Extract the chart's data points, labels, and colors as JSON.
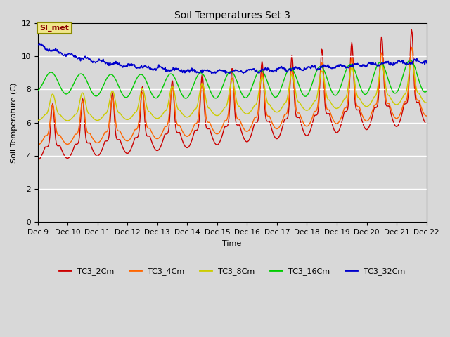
{
  "title": "Soil Temperatures Set 3",
  "xlabel": "Time",
  "ylabel": "Soil Temperature (C)",
  "ylim": [
    0,
    12
  ],
  "background_color": "#d8d8d8",
  "plot_bg_color": "#d8d8d8",
  "annotation_text": "SI_met",
  "annotation_bg": "#f0e68c",
  "annotation_border": "#8b8b00",
  "annotation_text_color": "#8b0000",
  "series": {
    "TC3_2Cm": {
      "color": "#cc0000",
      "lw": 1.0
    },
    "TC3_4Cm": {
      "color": "#ff6600",
      "lw": 1.0
    },
    "TC3_8Cm": {
      "color": "#cccc00",
      "lw": 1.0
    },
    "TC3_16Cm": {
      "color": "#00cc00",
      "lw": 1.0
    },
    "TC3_32Cm": {
      "color": "#0000cc",
      "lw": 1.2
    }
  },
  "x_tick_labels": [
    "Dec 9",
    "Dec 10",
    "Dec 11",
    "Dec 12",
    "Dec 13",
    "Dec 14",
    "Dec 15",
    "Dec 16",
    "Dec 17",
    "Dec 18",
    "Dec 19",
    "Dec 20",
    "Dec 21",
    "Dec 22"
  ],
  "x_tick_positions": [
    0,
    1,
    2,
    3,
    4,
    5,
    6,
    7,
    8,
    9,
    10,
    11,
    12,
    13
  ],
  "yticks": [
    0,
    2,
    4,
    6,
    8,
    10,
    12
  ]
}
